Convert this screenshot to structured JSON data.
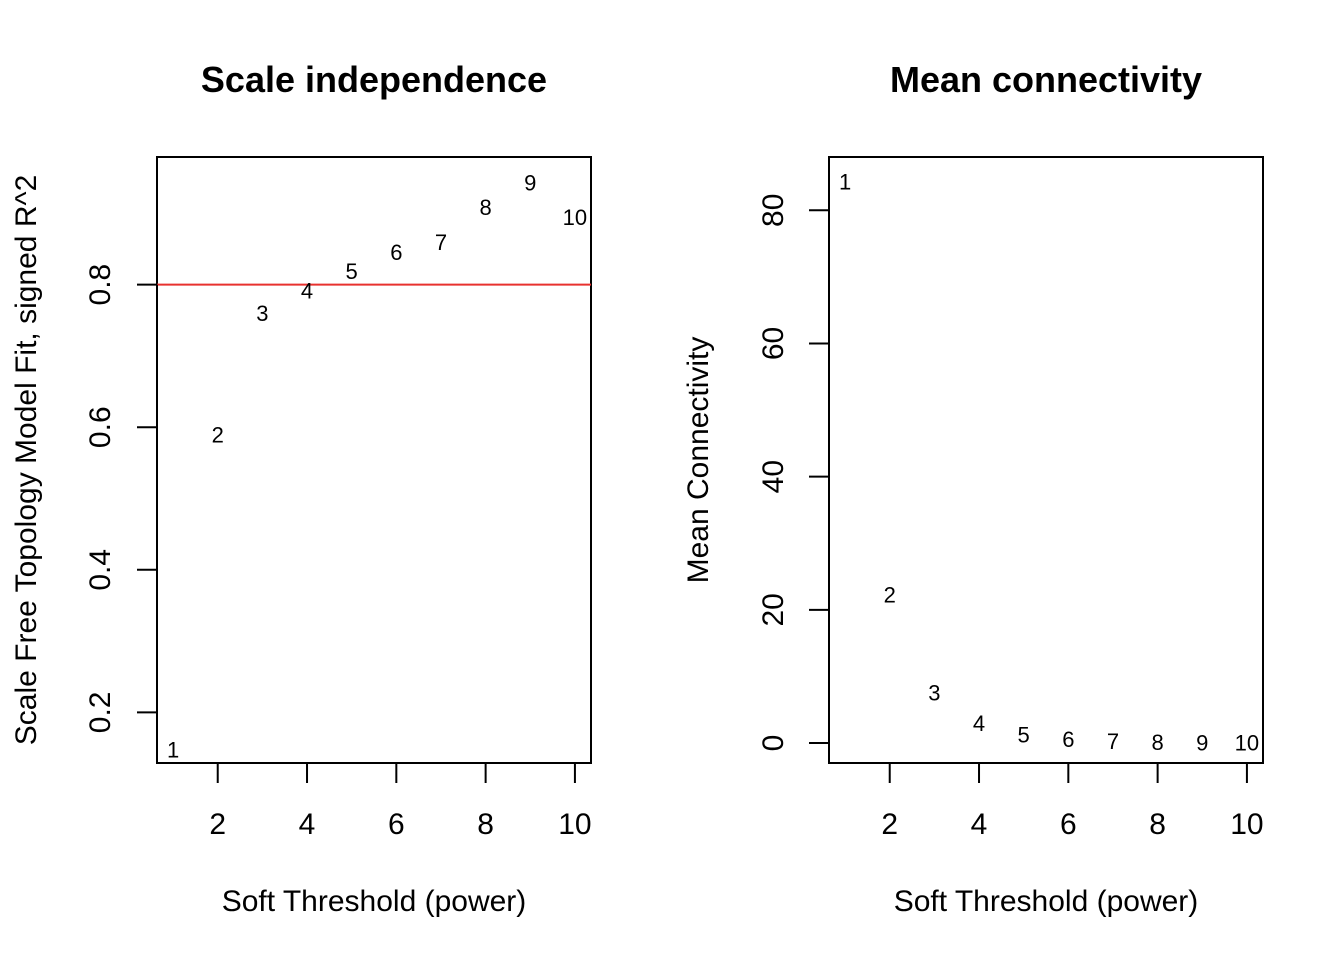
{
  "chart_data": [
    {
      "type": "scatter",
      "title": "Scale independence",
      "xlabel": "Soft Threshold (power)",
      "ylabel": "Scale Free Topology Model Fit, signed R^2",
      "xlim": [
        0.64,
        10.36
      ],
      "ylim": [
        0.129,
        0.979
      ],
      "x_ticks": [
        "2",
        "4",
        "6",
        "8",
        "10"
      ],
      "y_ticks": [
        "0.2",
        "0.4",
        "0.6",
        "0.8"
      ],
      "point_labels": [
        "1",
        "2",
        "3",
        "4",
        "5",
        "6",
        "7",
        "8",
        "9",
        "10"
      ],
      "points": [
        {
          "x": 1,
          "y": 0.148
        },
        {
          "x": 2,
          "y": 0.59
        },
        {
          "x": 3,
          "y": 0.76
        },
        {
          "x": 4,
          "y": 0.792
        },
        {
          "x": 5,
          "y": 0.819
        },
        {
          "x": 6,
          "y": 0.846
        },
        {
          "x": 7,
          "y": 0.86
        },
        {
          "x": 8,
          "y": 0.909
        },
        {
          "x": 9,
          "y": 0.943
        },
        {
          "x": 10,
          "y": 0.895
        }
      ],
      "reference_line": {
        "y": 0.8,
        "color": "#e8312f"
      },
      "grid": false,
      "legend": "none"
    },
    {
      "type": "scatter",
      "title": "Mean connectivity",
      "xlabel": "Soft Threshold (power)",
      "ylabel": "Mean Connectivity",
      "xlim": [
        0.64,
        10.36
      ],
      "ylim": [
        -3.0,
        88.0
      ],
      "x_ticks": [
        "2",
        "4",
        "6",
        "8",
        "10"
      ],
      "y_ticks": [
        "0",
        "20",
        "40",
        "60",
        "80"
      ],
      "point_labels": [
        "1",
        "2",
        "3",
        "4",
        "5",
        "6",
        "7",
        "8",
        "9",
        "10"
      ],
      "points": [
        {
          "x": 1,
          "y": 84.3
        },
        {
          "x": 2,
          "y": 22.3
        },
        {
          "x": 3,
          "y": 7.6
        },
        {
          "x": 4,
          "y": 3.0
        },
        {
          "x": 5,
          "y": 1.3
        },
        {
          "x": 6,
          "y": 0.6
        },
        {
          "x": 7,
          "y": 0.3
        },
        {
          "x": 8,
          "y": 0.15
        },
        {
          "x": 9,
          "y": 0.08
        },
        {
          "x": 10,
          "y": 0.05
        }
      ],
      "grid": false,
      "legend": "none"
    }
  ]
}
